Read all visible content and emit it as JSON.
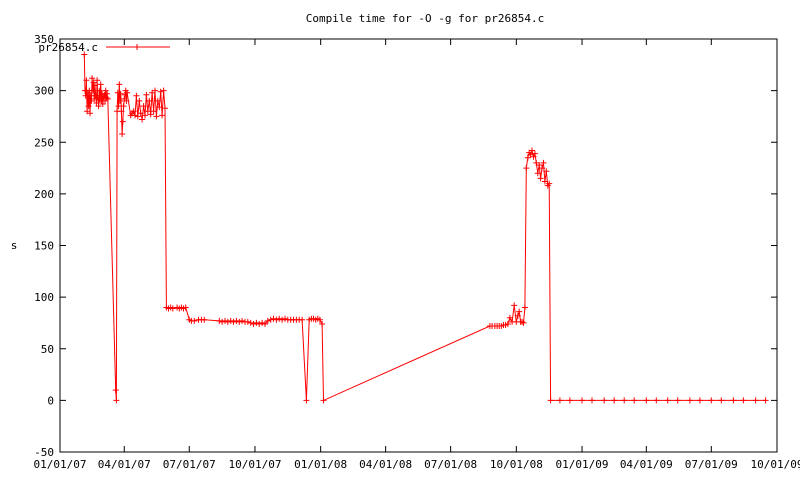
{
  "chart_data": {
    "type": "line",
    "title": "Compile time for -O -g for pr26854.c",
    "ylabel": "s",
    "xlabel": "",
    "ylim": [
      -50,
      350
    ],
    "yticks": [
      -50,
      0,
      50,
      100,
      150,
      200,
      250,
      300,
      350
    ],
    "xlim": [
      "2007-01-01",
      "2009-10-01"
    ],
    "xticks": [
      {
        "date": "2007-01-01",
        "label": "01/01/07"
      },
      {
        "date": "2007-04-01",
        "label": "04/01/07"
      },
      {
        "date": "2007-07-01",
        "label": "07/01/07"
      },
      {
        "date": "2007-10-01",
        "label": "10/01/07"
      },
      {
        "date": "2008-01-01",
        "label": "01/01/08"
      },
      {
        "date": "2008-04-01",
        "label": "04/01/08"
      },
      {
        "date": "2008-07-01",
        "label": "07/01/08"
      },
      {
        "date": "2008-10-01",
        "label": "10/01/08"
      },
      {
        "date": "2009-01-01",
        "label": "01/01/09"
      },
      {
        "date": "2009-04-01",
        "label": "04/01/09"
      },
      {
        "date": "2009-07-01",
        "label": "07/01/09"
      },
      {
        "date": "2009-10-01",
        "label": "10/01/09"
      }
    ],
    "grid": false,
    "legend": "top-left",
    "color": "#ff0000",
    "series": [
      {
        "name": "pr26854.c",
        "points": [
          [
            "2007-02-04",
            335
          ],
          [
            "2007-02-05",
            300
          ],
          [
            "2007-02-06",
            295
          ],
          [
            "2007-02-07",
            310
          ],
          [
            "2007-02-08",
            280
          ],
          [
            "2007-02-09",
            298
          ],
          [
            "2007-02-10",
            285
          ],
          [
            "2007-02-11",
            300
          ],
          [
            "2007-02-12",
            278
          ],
          [
            "2007-02-13",
            295
          ],
          [
            "2007-02-14",
            290
          ],
          [
            "2007-02-15",
            312
          ],
          [
            "2007-02-16",
            300
          ],
          [
            "2007-02-17",
            308
          ],
          [
            "2007-02-18",
            292
          ],
          [
            "2007-02-19",
            305
          ],
          [
            "2007-02-20",
            295
          ],
          [
            "2007-02-21",
            288
          ],
          [
            "2007-02-22",
            310
          ],
          [
            "2007-02-23",
            293
          ],
          [
            "2007-02-24",
            285
          ],
          [
            "2007-02-25",
            300
          ],
          [
            "2007-02-26",
            291
          ],
          [
            "2007-02-27",
            306
          ],
          [
            "2007-02-28",
            290
          ],
          [
            "2007-03-01",
            297
          ],
          [
            "2007-03-02",
            287
          ],
          [
            "2007-03-03",
            294
          ],
          [
            "2007-03-04",
            296
          ],
          [
            "2007-03-05",
            290
          ],
          [
            "2007-03-06",
            300
          ],
          [
            "2007-03-07",
            293
          ],
          [
            "2007-03-08",
            297
          ],
          [
            "2007-03-09",
            292
          ],
          [
            "2007-03-20",
            10
          ],
          [
            "2007-03-21",
            0
          ],
          [
            "2007-03-22",
            280
          ],
          [
            "2007-03-23",
            298
          ],
          [
            "2007-03-24",
            285
          ],
          [
            "2007-03-25",
            306
          ],
          [
            "2007-03-26",
            290
          ],
          [
            "2007-03-27",
            297
          ],
          [
            "2007-03-28",
            280
          ],
          [
            "2007-03-29",
            258
          ],
          [
            "2007-03-30",
            270
          ],
          [
            "2007-03-31",
            285
          ],
          [
            "2007-04-01",
            292
          ],
          [
            "2007-04-02",
            296
          ],
          [
            "2007-04-03",
            300
          ],
          [
            "2007-04-04",
            290
          ],
          [
            "2007-04-05",
            298
          ],
          [
            "2007-04-10",
            276
          ],
          [
            "2007-04-12",
            278
          ],
          [
            "2007-04-14",
            280
          ],
          [
            "2007-04-16",
            276
          ],
          [
            "2007-04-18",
            295
          ],
          [
            "2007-04-20",
            275
          ],
          [
            "2007-04-22",
            290
          ],
          [
            "2007-04-24",
            278
          ],
          [
            "2007-04-26",
            272
          ],
          [
            "2007-04-28",
            285
          ],
          [
            "2007-04-30",
            276
          ],
          [
            "2007-05-02",
            296
          ],
          [
            "2007-05-04",
            280
          ],
          [
            "2007-05-06",
            290
          ],
          [
            "2007-05-08",
            277
          ],
          [
            "2007-05-10",
            298
          ],
          [
            "2007-05-12",
            280
          ],
          [
            "2007-05-14",
            300
          ],
          [
            "2007-05-16",
            275
          ],
          [
            "2007-05-18",
            290
          ],
          [
            "2007-05-20",
            284
          ],
          [
            "2007-05-22",
            299
          ],
          [
            "2007-05-24",
            276
          ],
          [
            "2007-05-26",
            300
          ],
          [
            "2007-05-28",
            283
          ],
          [
            "2007-05-30",
            90
          ],
          [
            "2007-06-02",
            89
          ],
          [
            "2007-06-05",
            90
          ],
          [
            "2007-06-08",
            89
          ],
          [
            "2007-06-14",
            90
          ],
          [
            "2007-06-17",
            89
          ],
          [
            "2007-06-20",
            90
          ],
          [
            "2007-06-23",
            89
          ],
          [
            "2007-06-26",
            90
          ],
          [
            "2007-07-01",
            78
          ],
          [
            "2007-07-04",
            77
          ],
          [
            "2007-07-08",
            77
          ],
          [
            "2007-07-14",
            78
          ],
          [
            "2007-07-18",
            78
          ],
          [
            "2007-07-22",
            78
          ],
          [
            "2007-08-12",
            77
          ],
          [
            "2007-08-16",
            76
          ],
          [
            "2007-08-20",
            77
          ],
          [
            "2007-08-24",
            76
          ],
          [
            "2007-08-28",
            77
          ],
          [
            "2007-09-01",
            76
          ],
          [
            "2007-09-05",
            77
          ],
          [
            "2007-09-09",
            76
          ],
          [
            "2007-09-13",
            77
          ],
          [
            "2007-09-17",
            76
          ],
          [
            "2007-09-21",
            76
          ],
          [
            "2007-09-25",
            75
          ],
          [
            "2007-09-29",
            74
          ],
          [
            "2007-10-03",
            75
          ],
          [
            "2007-10-07",
            74
          ],
          [
            "2007-10-11",
            75
          ],
          [
            "2007-10-15",
            74
          ],
          [
            "2007-10-19",
            77
          ],
          [
            "2007-10-23",
            78
          ],
          [
            "2007-10-27",
            79
          ],
          [
            "2007-10-31",
            78
          ],
          [
            "2007-11-04",
            79
          ],
          [
            "2007-11-08",
            78
          ],
          [
            "2007-11-12",
            79
          ],
          [
            "2007-11-16",
            78
          ],
          [
            "2007-11-20",
            78
          ],
          [
            "2007-11-24",
            78
          ],
          [
            "2007-11-28",
            78
          ],
          [
            "2007-12-02",
            78
          ],
          [
            "2007-12-06",
            78
          ],
          [
            "2007-12-12",
            0
          ],
          [
            "2007-12-16",
            78
          ],
          [
            "2007-12-19",
            79
          ],
          [
            "2007-12-22",
            79
          ],
          [
            "2007-12-25",
            78
          ],
          [
            "2007-12-28",
            79
          ],
          [
            "2007-12-31",
            78
          ],
          [
            "2008-01-03",
            74
          ],
          [
            "2008-01-05",
            0
          ],
          [
            "2008-08-25",
            72
          ],
          [
            "2008-08-28",
            72
          ],
          [
            "2008-09-01",
            72
          ],
          [
            "2008-09-04",
            72
          ],
          [
            "2008-09-07",
            72
          ],
          [
            "2008-09-10",
            72
          ],
          [
            "2008-09-13",
            73
          ],
          [
            "2008-09-16",
            73
          ],
          [
            "2008-09-19",
            74
          ],
          [
            "2008-09-22",
            80
          ],
          [
            "2008-09-25",
            76
          ],
          [
            "2008-09-28",
            92
          ],
          [
            "2008-10-01",
            76
          ],
          [
            "2008-10-03",
            82
          ],
          [
            "2008-10-05",
            86
          ],
          [
            "2008-10-07",
            76
          ],
          [
            "2008-10-09",
            76
          ],
          [
            "2008-10-11",
            75
          ],
          [
            "2008-10-13",
            90
          ],
          [
            "2008-10-15",
            225
          ],
          [
            "2008-10-17",
            235
          ],
          [
            "2008-10-19",
            240
          ],
          [
            "2008-10-21",
            238
          ],
          [
            "2008-10-23",
            242
          ],
          [
            "2008-10-25",
            236
          ],
          [
            "2008-10-27",
            239
          ],
          [
            "2008-10-29",
            230
          ],
          [
            "2008-10-31",
            220
          ],
          [
            "2008-11-02",
            228
          ],
          [
            "2008-11-04",
            215
          ],
          [
            "2008-11-06",
            225
          ],
          [
            "2008-11-08",
            230
          ],
          [
            "2008-11-10",
            212
          ],
          [
            "2008-11-12",
            222
          ],
          [
            "2008-11-14",
            208
          ],
          [
            "2008-11-16",
            210
          ],
          [
            "2008-11-18",
            0
          ],
          [
            "2008-12-01",
            0
          ],
          [
            "2008-12-15",
            0
          ],
          [
            "2009-01-01",
            0
          ],
          [
            "2009-01-15",
            0
          ],
          [
            "2009-02-01",
            0
          ],
          [
            "2009-02-15",
            0
          ],
          [
            "2009-03-01",
            0
          ],
          [
            "2009-03-15",
            0
          ],
          [
            "2009-04-01",
            0
          ],
          [
            "2009-04-15",
            0
          ],
          [
            "2009-05-01",
            0
          ],
          [
            "2009-05-15",
            0
          ],
          [
            "2009-06-01",
            0
          ],
          [
            "2009-06-15",
            0
          ],
          [
            "2009-07-01",
            0
          ],
          [
            "2009-07-15",
            0
          ],
          [
            "2009-08-01",
            0
          ],
          [
            "2009-08-15",
            0
          ],
          [
            "2009-09-01",
            0
          ],
          [
            "2009-09-15",
            0
          ]
        ]
      }
    ]
  }
}
